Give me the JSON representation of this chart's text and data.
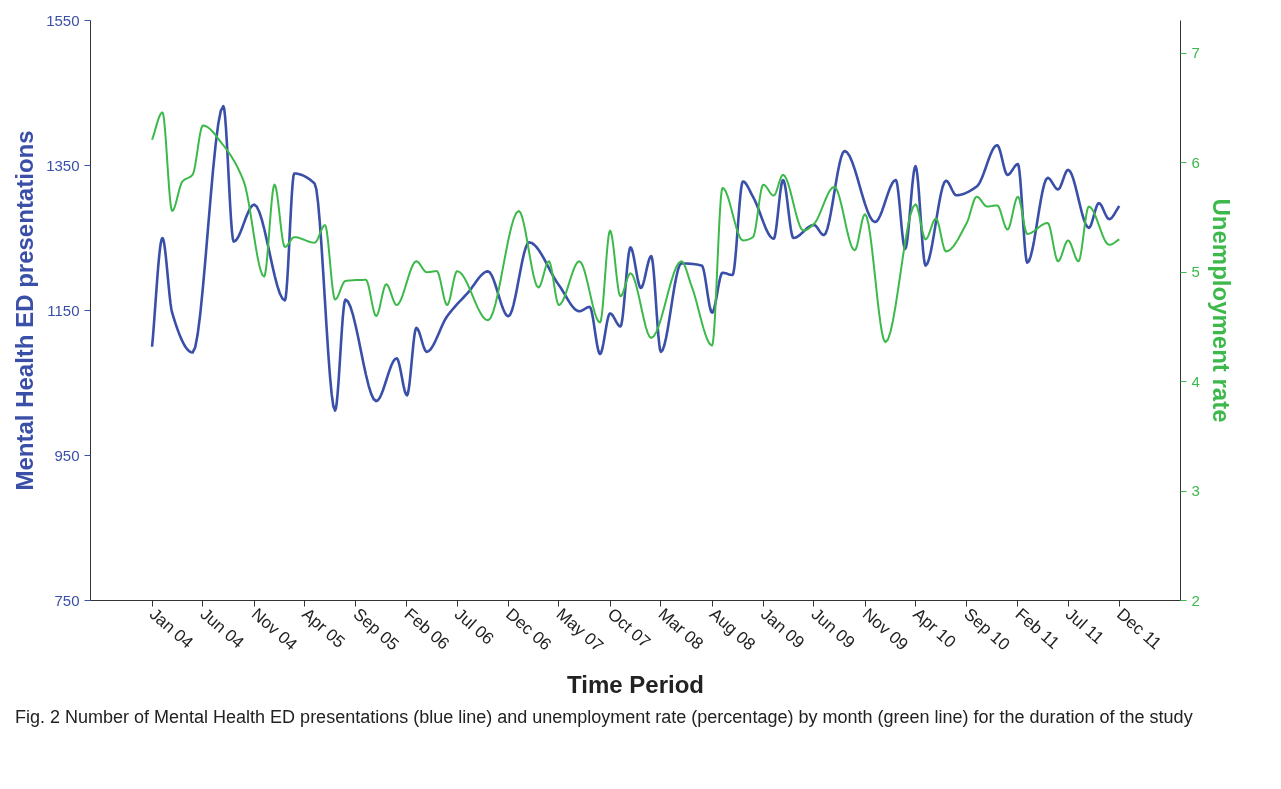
{
  "chart_data": {
    "type": "line",
    "xlabel": "Time Period",
    "ylabel": "Mental Health ED presentations",
    "y2label": "Unemployment rate",
    "annotations": [
      "Fig. 2 Number of Mental Health ED presentations (blue line) and unemployment rate (percentage) by month (green line) for the duration of the study"
    ],
    "series": [
      {
        "color": "#3a4fa8",
        "x": [
          "2004-01",
          "2004-02",
          "2004-03",
          "2004-05",
          "2004-08",
          "2004-09",
          "2004-11",
          "2005-02",
          "2005-03",
          "2005-05",
          "2005-07",
          "2005-08",
          "2005-11",
          "2006-01",
          "2006-02",
          "2006-03",
          "2006-04",
          "2006-06",
          "2006-08",
          "2006-10",
          "2006-12",
          "2007-02",
          "2007-05",
          "2007-07",
          "2007-08",
          "2007-09",
          "2007-10",
          "2007-11",
          "2007-12",
          "2008-01",
          "2008-02",
          "2008-03",
          "2008-05",
          "2008-07",
          "2008-08",
          "2008-09",
          "2008-10",
          "2008-11",
          "2008-12",
          "2009-02",
          "2009-03",
          "2009-04",
          "2009-06",
          "2009-07",
          "2009-09",
          "2009-12",
          "2010-02",
          "2010-03",
          "2010-04",
          "2010-05",
          "2010-07",
          "2010-08",
          "2010-10",
          "2010-12",
          "2011-01",
          "2011-02",
          "2011-03",
          "2011-05",
          "2011-06",
          "2011-07",
          "2011-09",
          "2011-10",
          "2011-11",
          "2011-12"
        ],
        "values": [
          1100,
          1250,
          1147,
          1092,
          1432,
          1245,
          1296,
          1164,
          1339,
          1325,
          1012,
          1165,
          1025,
          1084,
          1033,
          1126,
          1093,
          1142,
          1174,
          1204,
          1142,
          1244,
          1185,
          1149,
          1155,
          1090,
          1146,
          1128,
          1237,
          1181,
          1225,
          1093,
          1215,
          1212,
          1147,
          1202,
          1199,
          1328,
          1307,
          1249,
          1330,
          1250,
          1268,
          1254,
          1370,
          1272,
          1330,
          1235,
          1349,
          1212,
          1329,
          1309,
          1321,
          1378,
          1337,
          1352,
          1216,
          1333,
          1317,
          1344,
          1264,
          1298,
          1276,
          1294
        ]
      },
      {
        "color": "#3cb94a",
        "axis": "y2",
        "x": [
          "2004-01",
          "2004-02",
          "2004-03",
          "2004-04",
          "2004-05",
          "2004-06",
          "2004-08",
          "2004-10",
          "2004-12",
          "2005-01",
          "2005-02",
          "2005-03",
          "2005-05",
          "2005-06",
          "2005-07",
          "2005-08",
          "2005-10",
          "2005-11",
          "2005-12",
          "2006-01",
          "2006-03",
          "2006-04",
          "2006-05",
          "2006-06",
          "2006-07",
          "2006-10",
          "2007-01",
          "2007-03",
          "2007-04",
          "2007-05",
          "2007-07",
          "2007-09",
          "2007-10",
          "2007-11",
          "2007-12",
          "2008-02",
          "2008-05",
          "2008-06",
          "2008-08",
          "2008-09",
          "2008-11",
          "2008-12",
          "2009-01",
          "2009-02",
          "2009-03",
          "2009-05",
          "2009-06",
          "2009-08",
          "2009-10",
          "2009-11",
          "2010-01",
          "2010-04",
          "2010-05",
          "2010-06",
          "2010-07",
          "2010-09",
          "2010-10",
          "2010-11",
          "2010-12",
          "2011-01",
          "2011-02",
          "2011-03",
          "2011-05",
          "2011-06",
          "2011-07",
          "2011-08",
          "2011-09",
          "2011-11",
          "2011-12"
        ],
        "values": [
          6.21,
          6.46,
          5.56,
          5.83,
          5.89,
          6.34,
          6.16,
          5.83,
          4.96,
          5.8,
          5.23,
          5.32,
          5.27,
          5.43,
          4.75,
          4.92,
          4.93,
          4.6,
          4.89,
          4.7,
          5.1,
          5.0,
          5.01,
          4.7,
          5.01,
          4.56,
          5.56,
          4.86,
          5.1,
          4.7,
          5.1,
          4.54,
          5.38,
          4.78,
          4.99,
          4.4,
          5.1,
          4.87,
          4.33,
          5.77,
          5.29,
          5.32,
          5.8,
          5.7,
          5.89,
          5.38,
          5.44,
          5.78,
          5.2,
          5.53,
          4.36,
          5.62,
          5.3,
          5.49,
          5.19,
          5.45,
          5.69,
          5.6,
          5.61,
          5.39,
          5.69,
          5.35,
          5.45,
          5.1,
          5.29,
          5.1,
          5.6,
          5.25,
          5.3
        ]
      }
    ],
    "xlim": [
      "2003-07",
      "2012-06"
    ],
    "xticks": [
      {
        "value": "2004-01",
        "label": "Jan 04"
      },
      {
        "value": "2004-06",
        "label": "Jun 04"
      },
      {
        "value": "2004-11",
        "label": "Nov 04"
      },
      {
        "value": "2005-04",
        "label": "Apr 05"
      },
      {
        "value": "2005-09",
        "label": "Sep 05"
      },
      {
        "value": "2006-02",
        "label": "Feb 06"
      },
      {
        "value": "2006-07",
        "label": "Jul 06"
      },
      {
        "value": "2006-12",
        "label": "Dec 06"
      },
      {
        "value": "2007-05",
        "label": "May 07"
      },
      {
        "value": "2007-10",
        "label": "Oct 07"
      },
      {
        "value": "2008-03",
        "label": "Mar 08"
      },
      {
        "value": "2008-08",
        "label": "Aug 08"
      },
      {
        "value": "2009-01",
        "label": "Jan 09"
      },
      {
        "value": "2009-06",
        "label": "Jun 09"
      },
      {
        "value": "2009-11",
        "label": "Nov 09"
      },
      {
        "value": "2010-04",
        "label": "Apr 10"
      },
      {
        "value": "2010-09",
        "label": "Sep 10"
      },
      {
        "value": "2011-02",
        "label": "Feb 11"
      },
      {
        "value": "2011-07",
        "label": "Jul 11"
      },
      {
        "value": "2011-12",
        "label": "Dec 11"
      }
    ],
    "ylim": [
      750,
      1550
    ],
    "yticks": [
      750,
      950,
      1150,
      1350,
      1550
    ],
    "y2lim": [
      2,
      7.3
    ],
    "y2ticks": [
      2,
      3,
      4,
      5,
      6,
      7
    ],
    "grid": false
  }
}
